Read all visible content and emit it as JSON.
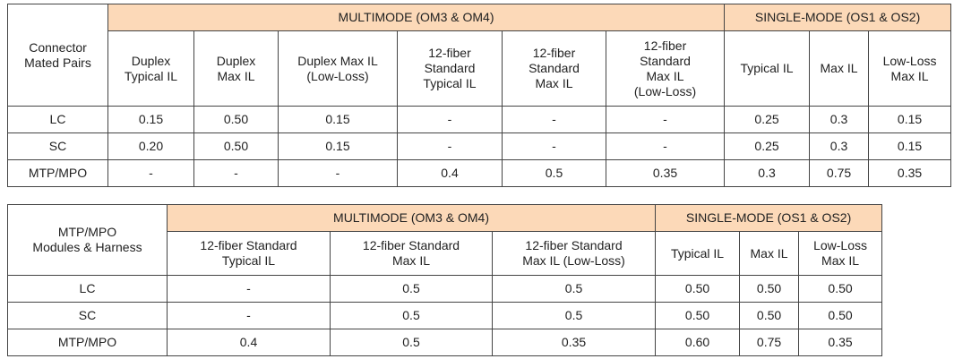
{
  "tables": [
    {
      "corner": "Connector\nMated Pairs",
      "group_headers": [
        {
          "label": "MULTIMODE (OM3 & OM4)",
          "span": 6
        },
        {
          "label": "SINGLE-MODE (OS1 & OS2)",
          "span": 3
        }
      ],
      "columns": [
        "Duplex\nTypical IL",
        "Duplex\nMax IL",
        "Duplex Max IL\n(Low-Loss)",
        "12-fiber\nStandard\nTypical IL",
        "12-fiber\nStandard\nMax IL",
        "12-fiber\nStandard\nMax IL\n(Low-Loss)",
        "Typical IL",
        "Max IL",
        "Low-Loss\nMax IL"
      ],
      "rows": [
        [
          "LC",
          "0.15",
          "0.50",
          "0.15",
          "-",
          "-",
          "-",
          "0.25",
          "0.3",
          "0.15"
        ],
        [
          "SC",
          "0.20",
          "0.50",
          "0.15",
          "-",
          "-",
          "-",
          "0.25",
          "0.3",
          "0.15"
        ],
        [
          "MTP/MPO",
          "-",
          "-",
          "-",
          "0.4",
          "0.5",
          "0.35",
          "0.3",
          "0.75",
          "0.35"
        ]
      ]
    },
    {
      "corner": "MTP/MPO\nModules & Harness",
      "group_headers": [
        {
          "label": "MULTIMODE (OM3 & OM4)",
          "span": 3
        },
        {
          "label": "SINGLE-MODE (OS1 & OS2)",
          "span": 3
        }
      ],
      "columns": [
        "12-fiber Standard\nTypical IL",
        "12-fiber Standard\nMax IL",
        "12-fiber Standard\nMax IL (Low-Loss)",
        "Typical IL",
        "Max IL",
        "Low-Loss\nMax IL"
      ],
      "rows": [
        [
          "LC",
          "-",
          "0.5",
          "0.5",
          "0.50",
          "0.50",
          "0.50"
        ],
        [
          "SC",
          "-",
          "0.5",
          "0.5",
          "0.50",
          "0.50",
          "0.50"
        ],
        [
          "MTP/MPO",
          "0.4",
          "0.5",
          "0.35",
          "0.60",
          "0.75",
          "0.35"
        ]
      ]
    }
  ]
}
